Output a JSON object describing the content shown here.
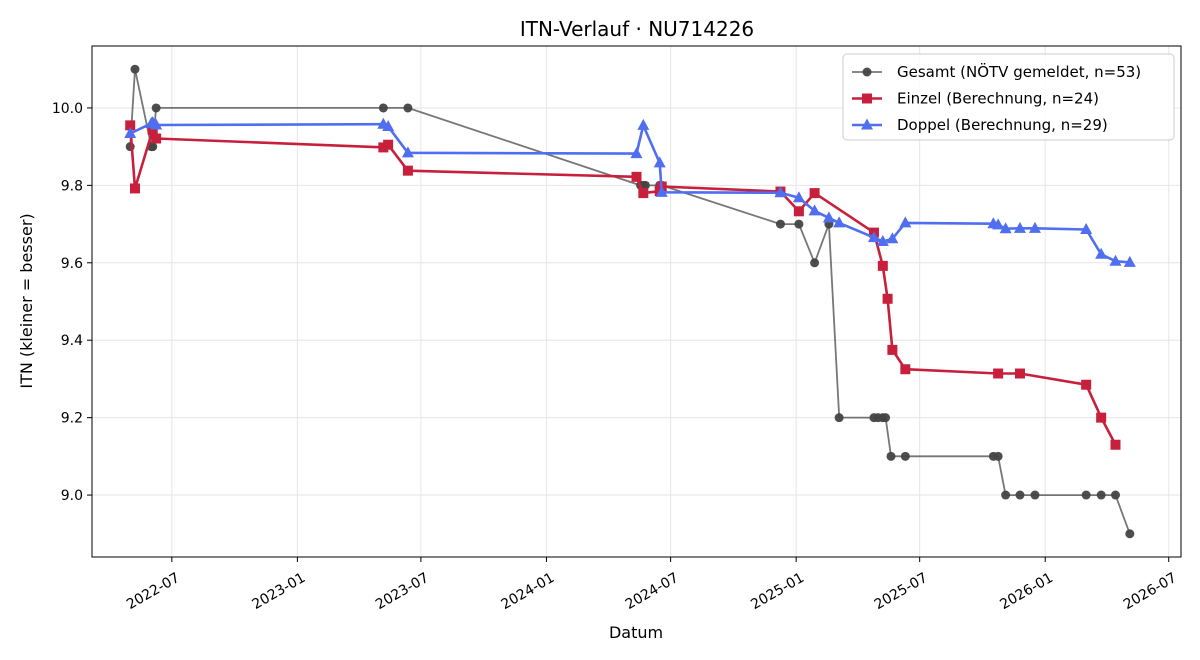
{
  "chart_data": {
    "type": "line",
    "title": "ITN-Verlauf · NU714226",
    "xlabel": "Datum",
    "ylabel": "ITN  (kleiner = besser)",
    "x_type": "date",
    "xlim": [
      "2022-03-06",
      "2026-07-19"
    ],
    "ylim": [
      8.84,
      10.16
    ],
    "x_ticks": [
      {
        "date": "2022-07-01",
        "label": "2022-07"
      },
      {
        "date": "2023-01-01",
        "label": "2023-01"
      },
      {
        "date": "2023-07-01",
        "label": "2023-07"
      },
      {
        "date": "2024-01-01",
        "label": "2024-01"
      },
      {
        "date": "2024-07-01",
        "label": "2024-07"
      },
      {
        "date": "2025-01-01",
        "label": "2025-01"
      },
      {
        "date": "2025-07-01",
        "label": "2025-07"
      },
      {
        "date": "2026-01-01",
        "label": "2026-01"
      },
      {
        "date": "2026-07-01",
        "label": "2026-07"
      }
    ],
    "y_ticks": [
      {
        "value": 9.0,
        "label": "9.0"
      },
      {
        "value": 9.2,
        "label": "9.2"
      },
      {
        "value": 9.4,
        "label": "9.4"
      },
      {
        "value": 9.6,
        "label": "9.6"
      },
      {
        "value": 9.8,
        "label": "9.8"
      },
      {
        "value": 10.0,
        "label": "10.0"
      }
    ],
    "grid": true,
    "legend_position": "top-right",
    "series": [
      {
        "name": "Gesamt (NÖTV gemeldet, n=53)",
        "color": "#555555",
        "marker": "circle",
        "x": [
          "2022-05-01",
          "2022-05-08",
          "2022-06-01",
          "2022-06-03",
          "2022-06-08",
          "2023-05-07",
          "2023-06-12",
          "2024-05-18",
          "2024-05-22",
          "2024-05-25",
          "2024-06-15",
          "2024-06-18",
          "2024-12-09",
          "2025-01-05",
          "2025-01-28",
          "2025-02-18",
          "2025-03-05",
          "2025-04-25",
          "2025-05-01",
          "2025-05-08",
          "2025-05-12",
          "2025-05-20",
          "2025-06-10",
          "2025-10-17",
          "2025-10-24",
          "2025-11-04",
          "2025-11-25",
          "2025-12-17",
          "2026-03-02",
          "2026-03-24",
          "2026-04-14",
          "2026-05-05"
        ],
        "y": [
          9.9,
          10.1,
          9.9,
          9.9,
          10.0,
          10.0,
          10.0,
          9.8,
          9.8,
          9.8,
          9.8,
          9.8,
          9.7,
          9.7,
          9.6,
          9.7,
          9.2,
          9.2,
          9.2,
          9.2,
          9.2,
          9.1,
          9.1,
          9.1,
          9.1,
          9.0,
          9.0,
          9.0,
          9.0,
          9.0,
          9.0,
          8.9
        ]
      },
      {
        "name": "Einzel (Berechnung, n=24)",
        "color": "#c8203c",
        "marker": "square",
        "x": [
          "2022-05-01",
          "2022-05-08",
          "2022-06-03",
          "2022-06-08",
          "2023-05-07",
          "2023-05-14",
          "2023-06-12",
          "2024-05-12",
          "2024-05-22",
          "2024-06-15",
          "2024-06-18",
          "2024-12-09",
          "2025-01-05",
          "2025-01-28",
          "2025-04-25",
          "2025-05-08",
          "2025-05-15",
          "2025-05-22",
          "2025-06-10",
          "2025-10-24",
          "2025-11-25",
          "2026-03-02",
          "2026-03-24",
          "2026-04-14"
        ],
        "y": [
          9.955,
          9.792,
          9.943,
          9.921,
          9.898,
          9.905,
          9.838,
          9.822,
          9.78,
          9.785,
          9.797,
          9.784,
          9.733,
          9.78,
          9.678,
          9.592,
          9.507,
          9.375,
          9.325,
          9.314,
          9.314,
          9.285,
          9.2,
          9.13
        ]
      },
      {
        "name": "Doppel (Berechnung, n=29)",
        "color": "#4f6ef0",
        "marker": "triangle",
        "x": [
          "2022-05-01",
          "2022-06-01",
          "2022-06-03",
          "2022-06-08",
          "2023-05-07",
          "2023-05-14",
          "2023-06-12",
          "2024-05-12",
          "2024-05-22",
          "2024-06-15",
          "2024-06-18",
          "2024-12-09",
          "2025-01-05",
          "2025-01-28",
          "2025-02-18",
          "2025-03-05",
          "2025-04-25",
          "2025-05-08",
          "2025-05-22",
          "2025-06-10",
          "2025-10-17",
          "2025-10-24",
          "2025-11-04",
          "2025-11-25",
          "2025-12-17",
          "2026-03-02",
          "2026-03-24",
          "2026-04-14",
          "2026-05-05"
        ],
        "y": [
          9.934,
          9.96,
          9.962,
          9.956,
          9.958,
          9.952,
          9.884,
          9.882,
          9.955,
          9.858,
          9.782,
          9.781,
          9.768,
          9.734,
          9.716,
          9.703,
          9.665,
          9.655,
          9.662,
          9.703,
          9.701,
          9.698,
          9.688,
          9.689,
          9.689,
          9.686,
          9.622,
          9.604,
          9.601
        ]
      }
    ]
  }
}
